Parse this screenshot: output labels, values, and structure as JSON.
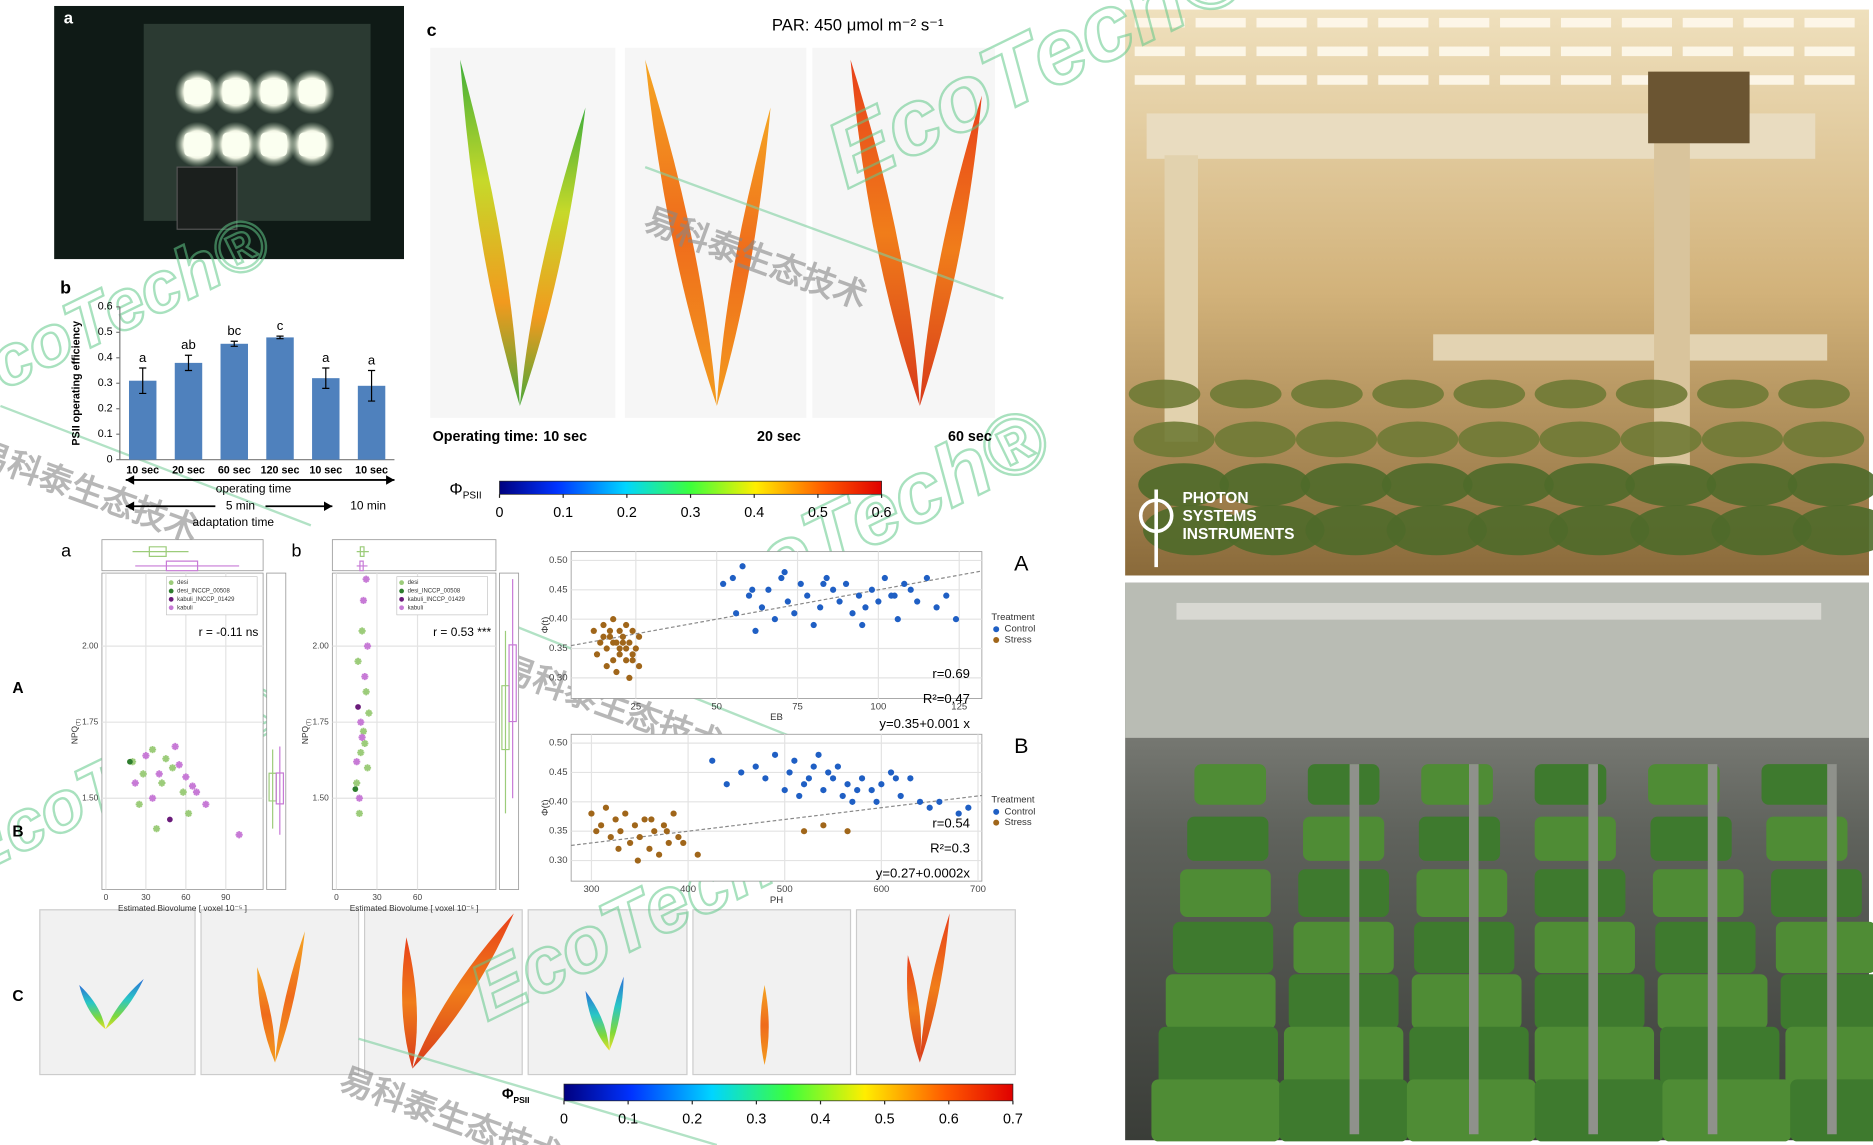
{
  "chart_data": [
    {
      "type": "bar",
      "panel": "b",
      "ylabel": "PSII operating efficiency",
      "categories": [
        "10 sec",
        "20 sec",
        "60 sec",
        "120 sec",
        "10 sec",
        "10 sec"
      ],
      "values": [
        0.31,
        0.38,
        0.455,
        0.48,
        0.32,
        0.29
      ],
      "errors": [
        0.05,
        0.03,
        0.01,
        0.005,
        0.04,
        0.06
      ],
      "annotations": [
        "a",
        "ab",
        "bc",
        "c",
        "a",
        "a"
      ],
      "color": "#4f81bd",
      "ylim": [
        0,
        0.6
      ],
      "yticks": [
        0,
        0.1,
        0.2,
        0.3,
        0.4,
        0.5,
        0.6
      ],
      "xlabel": "operating time",
      "adaptation_periods": [
        "5 min",
        "10 min"
      ],
      "adaptation_label": "adaptation time"
    },
    {
      "type": "colorbar",
      "panel": "c",
      "title": "PAR: 450 μmol m⁻² s⁻¹",
      "time_label": "Operating time:",
      "times": [
        "10 sec",
        "20 sec",
        "60 sec"
      ],
      "symbol": "Φ",
      "subscript": "PSII",
      "xlim": [
        0,
        0.6
      ],
      "xticks": [
        0,
        0.1,
        0.2,
        0.3,
        0.4,
        0.5,
        0.6
      ]
    },
    {
      "type": "scatter",
      "panel": "a",
      "xlabel": "Estimated Biovolume [ voxel 10⁻⁵ ]",
      "ylabel": "NPQ",
      "ylabel_sub": "(T)",
      "annotation": "r = -0.11 ns",
      "grid": true,
      "xlim": [
        -3,
        118
      ],
      "ylim": [
        1.2,
        2.24
      ],
      "xticks": [
        0,
        30,
        60,
        90
      ],
      "yticks": [
        {
          "value": 1.5,
          "label": "1.50"
        },
        1.75,
        {
          "value": 2.0,
          "label": "2.00"
        }
      ],
      "series": [
        {
          "name": "desi",
          "color": "#9ccc7a",
          "marker": "star",
          "x": [
            20,
            28,
            35,
            42,
            50,
            58,
            25,
            45,
            62,
            38
          ],
          "values": [
            1.62,
            1.58,
            1.66,
            1.55,
            1.6,
            1.52,
            1.48,
            1.63,
            1.45,
            1.4
          ]
        },
        {
          "name": "desi_INCCP_00508",
          "color": "#2e7d2e",
          "marker": "circle",
          "x": [
            18
          ],
          "values": [
            1.62
          ]
        },
        {
          "name": "kabuli_INCCP_01429",
          "color": "#6a1b7a",
          "marker": "circle",
          "x": [
            48
          ],
          "values": [
            1.43
          ]
        },
        {
          "name": "kabuli",
          "color": "#c77ad6",
          "marker": "star",
          "x": [
            22,
            30,
            40,
            52,
            60,
            68,
            35,
            55,
            65,
            75,
            100
          ],
          "values": [
            1.55,
            1.64,
            1.58,
            1.67,
            1.57,
            1.52,
            1.5,
            1.61,
            1.54,
            1.48,
            1.38
          ]
        }
      ]
    },
    {
      "type": "scatter",
      "panel": "b",
      "xlabel": "Estimated Biovolume [ voxel 10⁻⁵ ]",
      "ylabel": "NPQ",
      "ylabel_sub": "(T)",
      "annotation": "r = 0.53 ***",
      "grid": true,
      "xlim": [
        -3,
        118
      ],
      "ylim": [
        1.2,
        2.24
      ],
      "xticks": [
        0,
        30,
        60
      ],
      "yticks": [
        {
          "value": 1.5,
          "label": "1.50"
        },
        1.75,
        {
          "value": 2.0,
          "label": "2.00"
        }
      ],
      "series": [
        {
          "name": "desi",
          "color": "#9ccc7a",
          "marker": "star",
          "x": [
            15,
            18,
            20,
            22,
            16,
            19,
            21,
            24,
            17,
            23
          ],
          "values": [
            1.55,
            1.65,
            1.72,
            1.85,
            1.95,
            2.05,
            1.68,
            1.78,
            1.45,
            1.6
          ]
        },
        {
          "name": "desi_INCCP_00508",
          "color": "#2e7d2e",
          "marker": "circle",
          "x": [
            14
          ],
          "values": [
            1.53
          ]
        },
        {
          "name": "kabuli_INCCP_01429",
          "color": "#6a1b7a",
          "marker": "circle",
          "x": [
            16
          ],
          "values": [
            1.8
          ]
        },
        {
          "name": "kabuli",
          "color": "#c77ad6",
          "marker": "star",
          "x": [
            18,
            20,
            22,
            15,
            21,
            19,
            23,
            17
          ],
          "values": [
            1.75,
            2.15,
            2.22,
            1.62,
            1.9,
            1.7,
            2.0,
            1.5
          ]
        }
      ]
    },
    {
      "type": "scatter",
      "panel": "A",
      "xlabel": "EB",
      "ylabel": "Φ(t)",
      "legend_title": "Treatment",
      "annotations": [
        "r=0.69",
        "R²=0.47",
        "y=0.35+0.001 x"
      ],
      "fit": [
        0.35,
        0.001
      ],
      "grid": true,
      "xlim": [
        5,
        132
      ],
      "ylim": [
        0.265,
        0.515
      ],
      "xticks": [
        25,
        50,
        75,
        100,
        125
      ],
      "yticks": [
        {
          "value": 0.3,
          "label": "0.30"
        },
        0.35,
        {
          "value": 0.4,
          "label": "0.40"
        },
        0.45,
        {
          "value": 0.5,
          "label": "0.50"
        }
      ],
      "series": [
        {
          "name": "Control",
          "color": "#1f5fc4",
          "marker": "circle",
          "x": [
            52,
            55,
            58,
            60,
            62,
            64,
            66,
            68,
            70,
            72,
            74,
            76,
            78,
            80,
            82,
            84,
            86,
            88,
            90,
            92,
            94,
            96,
            98,
            100,
            102,
            104,
            106,
            108,
            110,
            112,
            115,
            118,
            121,
            124,
            56,
            61,
            71,
            83,
            95,
            105
          ],
          "values": [
            0.46,
            0.47,
            0.49,
            0.44,
            0.38,
            0.42,
            0.45,
            0.4,
            0.47,
            0.43,
            0.41,
            0.46,
            0.44,
            0.39,
            0.42,
            0.47,
            0.45,
            0.43,
            0.46,
            0.41,
            0.44,
            0.42,
            0.45,
            0.43,
            0.47,
            0.44,
            0.4,
            0.46,
            0.45,
            0.43,
            0.47,
            0.42,
            0.44,
            0.4,
            0.41,
            0.45,
            0.48,
            0.46,
            0.39,
            0.44
          ]
        },
        {
          "name": "Stress",
          "color": "#a0661a",
          "marker": "circle",
          "x": [
            12,
            14,
            15,
            16,
            17,
            18,
            18,
            19,
            20,
            20,
            21,
            22,
            22,
            23,
            24,
            24,
            25,
            26,
            13,
            16,
            19,
            21,
            23,
            17,
            20,
            22,
            15,
            18,
            24,
            26
          ],
          "values": [
            0.38,
            0.36,
            0.39,
            0.35,
            0.37,
            0.4,
            0.33,
            0.36,
            0.38,
            0.34,
            0.37,
            0.35,
            0.39,
            0.36,
            0.33,
            0.38,
            0.35,
            0.37,
            0.34,
            0.32,
            0.31,
            0.36,
            0.3,
            0.38,
            0.35,
            0.33,
            0.37,
            0.36,
            0.34,
            0.32
          ]
        }
      ]
    },
    {
      "type": "scatter",
      "panel": "B",
      "xlabel": "PH",
      "ylabel": "Φ(t)",
      "legend_title": "Treatment",
      "annotations": [
        "r=0.54",
        "R²=0.3",
        "y=0.27+0.0002x"
      ],
      "fit": [
        0.27,
        0.0002
      ],
      "grid": true,
      "xlim": [
        279,
        704
      ],
      "ylim": [
        0.265,
        0.515
      ],
      "xticks": [
        300,
        400,
        500,
        600,
        700
      ],
      "yticks": [
        {
          "value": 0.3,
          "label": "0.30"
        },
        0.35,
        {
          "value": 0.4,
          "label": "0.40"
        },
        0.45,
        {
          "value": 0.5,
          "label": "0.50"
        }
      ],
      "series": [
        {
          "name": "Control",
          "color": "#1f5fc4",
          "marker": "circle",
          "x": [
            425,
            440,
            455,
            470,
            480,
            490,
            500,
            505,
            510,
            520,
            525,
            530,
            540,
            545,
            550,
            560,
            565,
            570,
            580,
            590,
            600,
            610,
            620,
            630,
            640,
            650,
            660,
            680,
            690,
            515,
            535,
            555,
            575,
            595,
            615
          ],
          "values": [
            0.47,
            0.43,
            0.45,
            0.46,
            0.44,
            0.48,
            0.42,
            0.45,
            0.47,
            0.43,
            0.44,
            0.46,
            0.42,
            0.45,
            0.44,
            0.41,
            0.43,
            0.4,
            0.44,
            0.42,
            0.43,
            0.45,
            0.41,
            0.44,
            0.4,
            0.39,
            0.4,
            0.38,
            0.39,
            0.41,
            0.48,
            0.46,
            0.42,
            0.4,
            0.44
          ]
        },
        {
          "name": "Stress",
          "color": "#a0661a",
          "marker": "circle",
          "x": [
            300,
            310,
            315,
            320,
            325,
            330,
            335,
            340,
            345,
            350,
            355,
            360,
            365,
            370,
            375,
            380,
            385,
            390,
            305,
            328,
            348,
            362,
            378,
            395,
            410,
            520,
            540,
            565
          ],
          "values": [
            0.38,
            0.36,
            0.39,
            0.34,
            0.37,
            0.35,
            0.38,
            0.33,
            0.36,
            0.34,
            0.37,
            0.32,
            0.35,
            0.31,
            0.36,
            0.33,
            0.38,
            0.34,
            0.35,
            0.32,
            0.3,
            0.37,
            0.35,
            0.33,
            0.31,
            0.35,
            0.36,
            0.35
          ]
        }
      ]
    },
    {
      "type": "colorbar",
      "panel": "C",
      "symbol": "Φ",
      "subscript": "PSII",
      "xlim": [
        0,
        0.7
      ],
      "xticks": [
        0,
        0.1,
        0.2,
        0.3,
        0.4,
        0.5,
        0.6,
        0.7
      ]
    }
  ],
  "photo_label": "a",
  "row_labels": [
    "A",
    "B"
  ],
  "logo": [
    "PHOTON",
    "SYSTEMS",
    "INSTRUMENTS"
  ],
  "watermark": {
    "brand": "EcoTech®",
    "chinese": "易科泰生态技术"
  }
}
